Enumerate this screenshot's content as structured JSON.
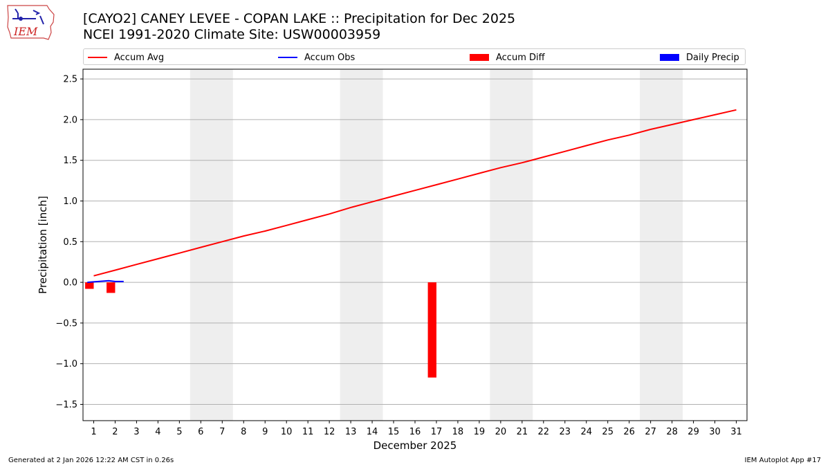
{
  "logo": {
    "text": "IEM"
  },
  "title": {
    "line1": "[CAYO2] CANEY LEVEE - COPAN LAKE :: Precipitation for Dec 2025",
    "line2": "NCEI 1991-2020 Climate Site: USW00003959"
  },
  "footer": {
    "left": "Generated at 2 Jan 2026 12:22 AM CST in 0.26s",
    "right": "IEM Autoplot App #17"
  },
  "colors": {
    "accum_avg": "#ff0000",
    "accum_obs": "#0000ff",
    "accum_diff": "#ff0000",
    "daily_precip": "#0000ff",
    "weekend_shade": "#eeeeee",
    "grid": "#b0b0b0"
  },
  "chart_data": {
    "type": "line",
    "xlabel": "December 2025",
    "ylabel": "Precipitation [inch]",
    "xlim": [
      0.5,
      31.5
    ],
    "ylim": [
      -1.7,
      2.62
    ],
    "grid": "horizontal",
    "legend_placement": "top",
    "x": [
      1,
      2,
      3,
      4,
      5,
      6,
      7,
      8,
      9,
      10,
      11,
      12,
      13,
      14,
      15,
      16,
      17,
      18,
      19,
      20,
      21,
      22,
      23,
      24,
      25,
      26,
      27,
      28,
      29,
      30,
      31
    ],
    "y_ticks": [
      2.5,
      2.0,
      1.5,
      1.0,
      0.5,
      0.0,
      -0.5,
      -1.0,
      -1.5
    ],
    "y_tick_labels": [
      "2.5",
      "2.0",
      "1.5",
      "1.0",
      "0.5",
      "0.0",
      "−0.5",
      "−1.0",
      "−1.5"
    ],
    "weekends": [
      [
        5.5,
        7.5
      ],
      [
        12.5,
        14.5
      ],
      [
        19.5,
        21.5
      ],
      [
        26.5,
        28.5
      ]
    ],
    "legend": [
      {
        "name": "Accum Avg",
        "kind": "line",
        "color": "#ff0000"
      },
      {
        "name": "Accum Obs",
        "kind": "line",
        "color": "#0000ff"
      },
      {
        "name": "Accum Diff",
        "kind": "bar",
        "color": "#ff0000"
      },
      {
        "name": "Daily Precip",
        "kind": "bar",
        "color": "#0000ff"
      }
    ],
    "series": [
      {
        "name": "Accum Avg",
        "type": "line",
        "color": "#ff0000",
        "x": [
          1,
          2,
          3,
          4,
          5,
          6,
          7,
          8,
          9,
          10,
          11,
          12,
          13,
          14,
          15,
          16,
          17,
          18,
          19,
          20,
          21,
          22,
          23,
          24,
          25,
          26,
          27,
          28,
          29,
          30,
          31
        ],
        "values": [
          0.08,
          0.15,
          0.22,
          0.29,
          0.36,
          0.43,
          0.5,
          0.57,
          0.63,
          0.7,
          0.77,
          0.84,
          0.92,
          0.99,
          1.06,
          1.13,
          1.2,
          1.27,
          1.34,
          1.41,
          1.47,
          1.54,
          1.61,
          1.68,
          1.75,
          1.81,
          1.88,
          1.94,
          2.0,
          2.06,
          2.12
        ]
      },
      {
        "name": "Accum Obs",
        "type": "line",
        "color": "#0000ff",
        "x": [
          0.7,
          1.7,
          2.0,
          2.4
        ],
        "values": [
          0.0,
          0.02,
          0.01,
          0.01
        ]
      },
      {
        "name": "Accum Diff",
        "type": "bar",
        "color": "#ff0000",
        "x": [
          0.8,
          1.8,
          16.8
        ],
        "values": [
          -0.08,
          -0.13,
          -1.17
        ]
      },
      {
        "name": "Daily Precip",
        "type": "bar",
        "color": "#0000ff",
        "x": [],
        "values": []
      }
    ]
  }
}
